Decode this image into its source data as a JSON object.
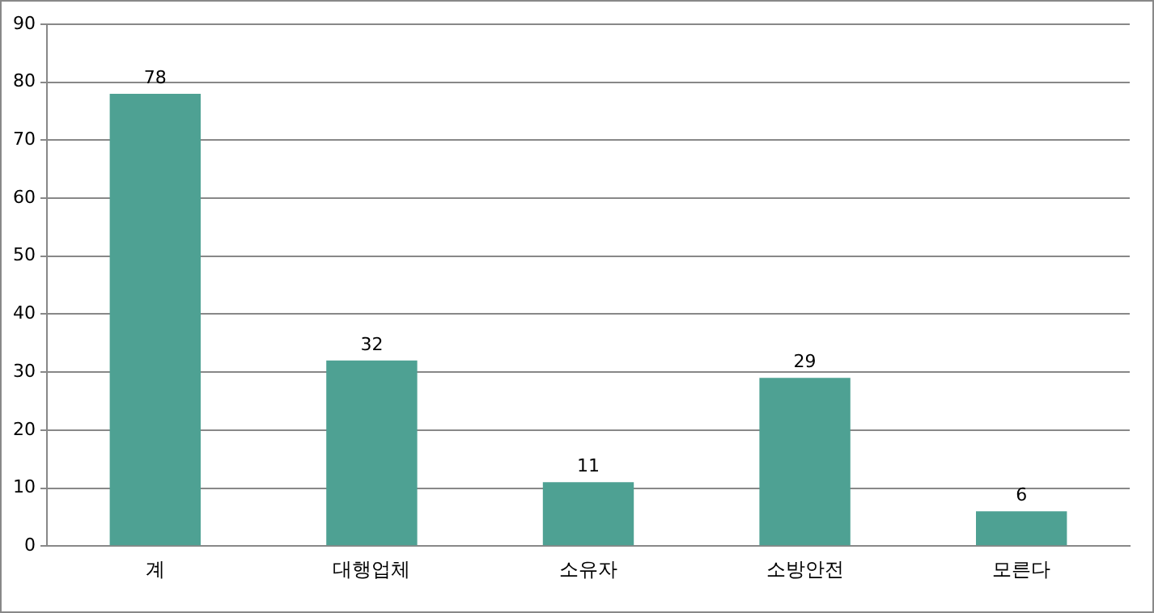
{
  "chart_data": {
    "type": "bar",
    "categories": [
      "계",
      "대행업체",
      "소유자",
      "소방안전",
      "모른다"
    ],
    "values": [
      78,
      32,
      11,
      29,
      6
    ],
    "color": "#4ea193",
    "ylim": [
      0,
      90
    ],
    "yticks": [
      0,
      10,
      20,
      30,
      40,
      50,
      60,
      70,
      80,
      90
    ],
    "grid": "y",
    "data_labels": true
  }
}
